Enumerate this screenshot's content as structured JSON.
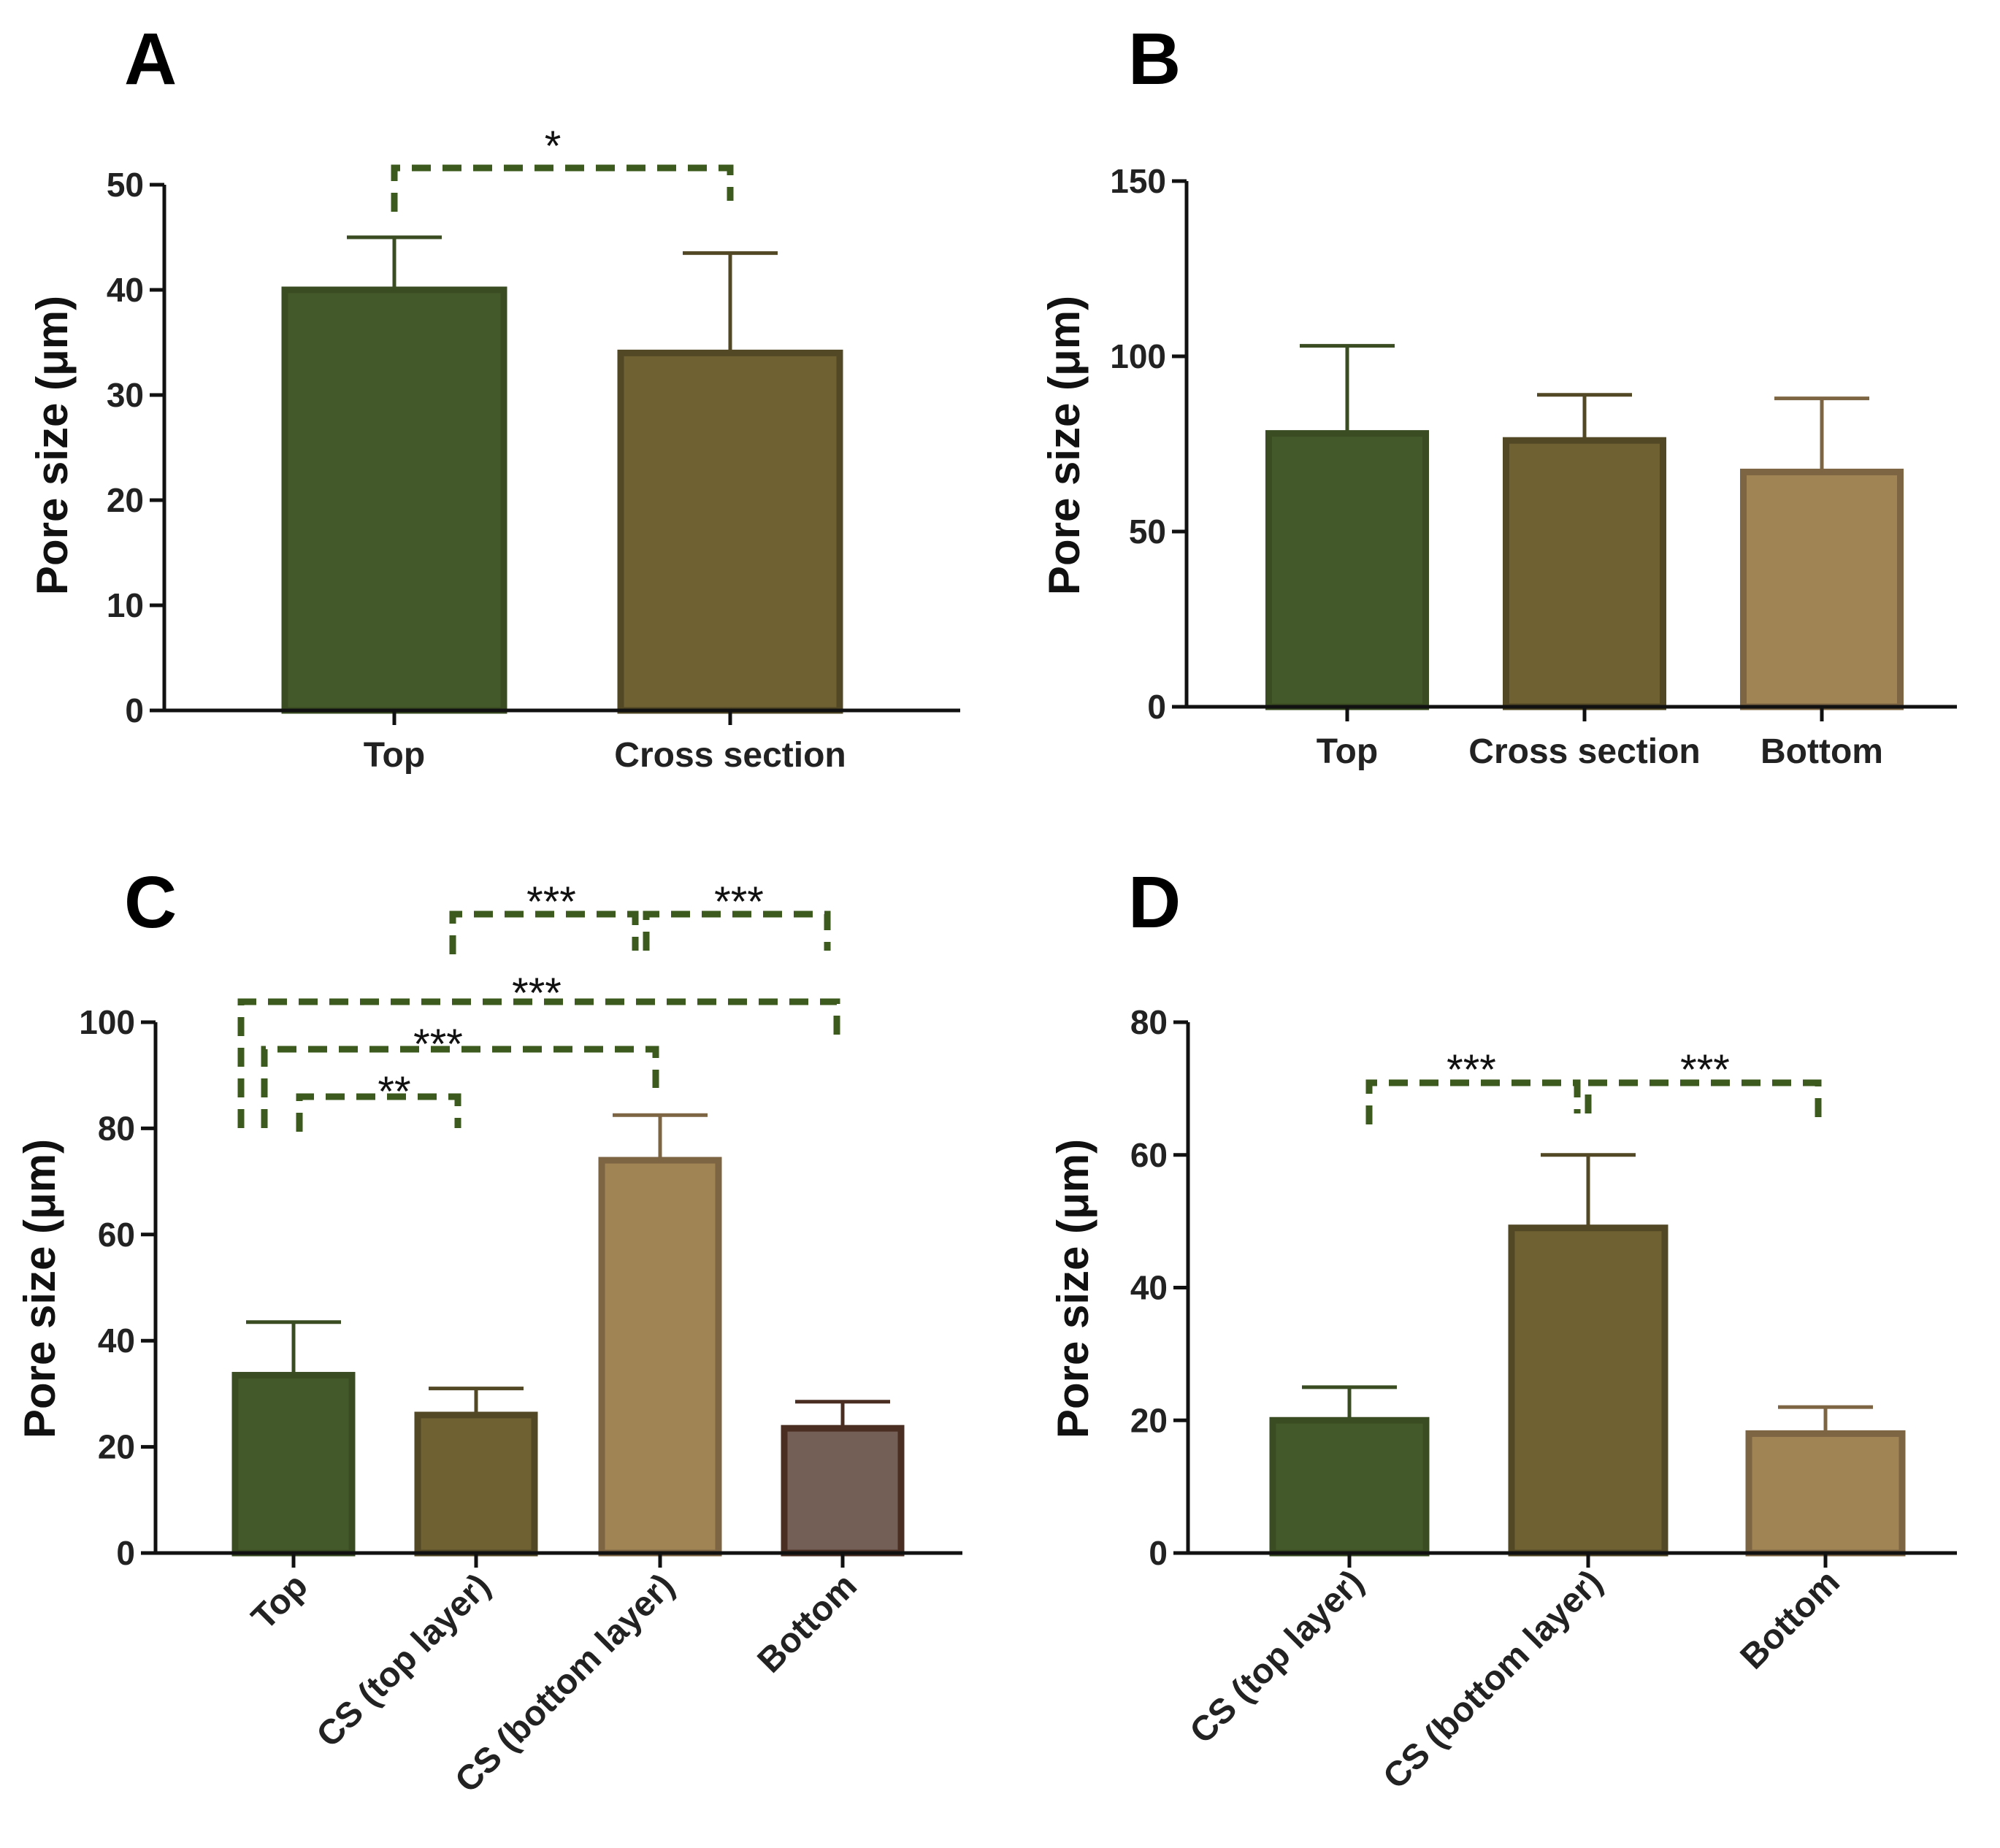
{
  "chart_data": [
    {
      "type": "bar",
      "panel": "A",
      "ylabel": "Pore size (μm)",
      "ylim": [
        0,
        50
      ],
      "yticks": [
        0,
        10,
        20,
        30,
        40,
        50
      ],
      "categories": [
        "Top",
        "Cross section"
      ],
      "values": [
        40,
        34
      ],
      "errors": [
        5,
        9.5
      ],
      "colors": [
        "#44592a",
        "#6f6132"
      ],
      "edge_colors": [
        "#3a4d22",
        "#524825"
      ],
      "label_rotation": 0,
      "significance": [
        {
          "from": 0,
          "to": 1,
          "label": "*"
        }
      ]
    },
    {
      "type": "bar",
      "panel": "B",
      "ylabel": "Pore size (μm)",
      "ylim": [
        0,
        150
      ],
      "yticks": [
        0,
        50,
        100,
        150
      ],
      "categories": [
        "Top",
        "Cross section",
        "Bottom"
      ],
      "values": [
        78,
        76,
        67
      ],
      "errors": [
        25,
        13,
        21
      ],
      "colors": [
        "#44592a",
        "#6f6132",
        "#a08454"
      ],
      "edge_colors": [
        "#3a4d22",
        "#524825",
        "#7d6443"
      ],
      "label_rotation": 0,
      "significance": []
    },
    {
      "type": "bar",
      "panel": "C",
      "ylabel": "Pore size (μm)",
      "ylim": [
        0,
        100
      ],
      "yticks": [
        0,
        20,
        40,
        60,
        80,
        100
      ],
      "categories": [
        "Top",
        "CS (top layer)",
        "CS (bottom layer)",
        "Bottom"
      ],
      "values": [
        33.5,
        26,
        74,
        23.5
      ],
      "errors": [
        10,
        5,
        8.5,
        5
      ],
      "colors": [
        "#44592a",
        "#6f6132",
        "#a08454",
        "#735f55"
      ],
      "edge_colors": [
        "#3a4d22",
        "#524825",
        "#7d6443",
        "#4a2e22"
      ],
      "label_rotation": -45,
      "significance": [
        {
          "from": 1,
          "to": 2,
          "label": "***"
        },
        {
          "from": 2,
          "to": 3,
          "label": "***"
        },
        {
          "from": 0,
          "to": 3,
          "label": "***"
        },
        {
          "from": 0,
          "to": 2,
          "label": "***"
        },
        {
          "from": 0,
          "to": 1,
          "label": "**"
        }
      ]
    },
    {
      "type": "bar",
      "panel": "D",
      "ylabel": "Pore size (μm)",
      "ylim": [
        0,
        80
      ],
      "yticks": [
        0,
        20,
        40,
        60,
        80
      ],
      "categories": [
        "CS (top layer)",
        "CS (bottom  layer)",
        "Bottom"
      ],
      "values": [
        20,
        49,
        18
      ],
      "errors": [
        5,
        11,
        4
      ],
      "colors": [
        "#44592a",
        "#6f6132",
        "#a08454"
      ],
      "edge_colors": [
        "#3a4d22",
        "#524825",
        "#7d6443"
      ],
      "label_rotation": -45,
      "significance": [
        {
          "from": 0,
          "to": 1,
          "label": "***"
        },
        {
          "from": 1,
          "to": 2,
          "label": "***"
        }
      ]
    }
  ]
}
